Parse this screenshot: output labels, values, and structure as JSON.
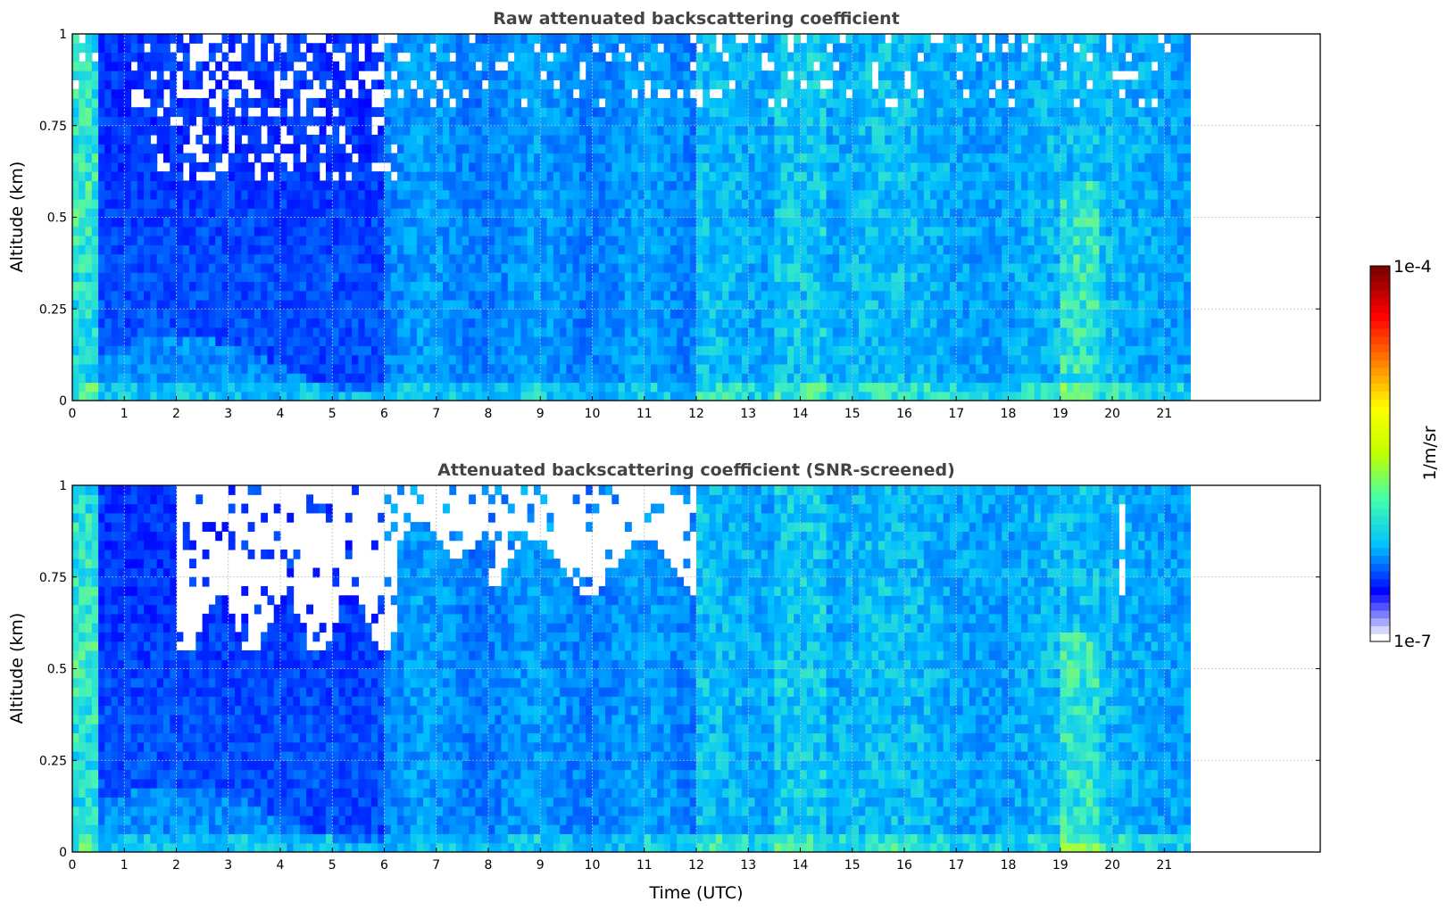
{
  "chart_data": [
    {
      "type": "heatmap",
      "title": "Raw attenuated backscattering coefficient",
      "xlabel": "",
      "ylabel": "Altitude (km)",
      "xlim": [
        0,
        24
      ],
      "ylim": [
        0,
        1
      ],
      "xticks": [
        "0",
        "1",
        "2",
        "3",
        "4",
        "5",
        "6",
        "7",
        "8",
        "9",
        "10",
        "11",
        "12",
        "13",
        "14",
        "15",
        "16",
        "17",
        "18",
        "19",
        "20",
        "21"
      ],
      "yticks": [
        "0",
        "0.25",
        "0.5",
        "0.75",
        "1"
      ],
      "data_extent_x": [
        0,
        21.5
      ],
      "grid": true,
      "screened": false
    },
    {
      "type": "heatmap",
      "title": "Attenuated backscattering coefficient (SNR-screened)",
      "xlabel": "Time (UTC)",
      "ylabel": "Altitude (km)",
      "xlim": [
        0,
        24
      ],
      "ylim": [
        0,
        1
      ],
      "xticks": [
        "0",
        "1",
        "2",
        "3",
        "4",
        "5",
        "6",
        "7",
        "8",
        "9",
        "10",
        "11",
        "12",
        "13",
        "14",
        "15",
        "16",
        "17",
        "18",
        "19",
        "20",
        "21"
      ],
      "yticks": [
        "0",
        "0.25",
        "0.5",
        "0.75",
        "1"
      ],
      "data_extent_x": [
        0,
        21.5
      ],
      "grid": true,
      "screened": true
    }
  ],
  "colorbar": {
    "label": "1/m/sr",
    "min_label": "1e-7",
    "max_label": "1e-4",
    "scale": "log",
    "colormap": [
      "#ffffff",
      "#0000ff",
      "#00bfff",
      "#40ffb0",
      "#c0ff00",
      "#ffff00",
      "#ff8000",
      "#ff0000",
      "#800000"
    ]
  }
}
